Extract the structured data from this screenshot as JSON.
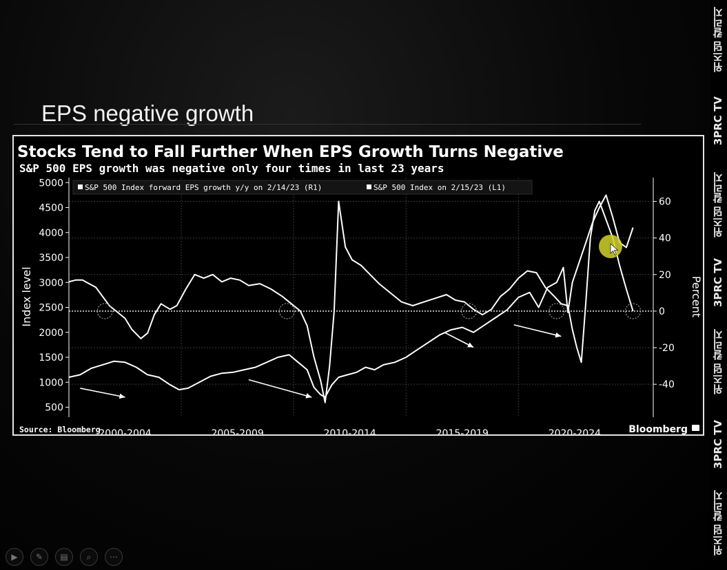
{
  "slide": {
    "title": "EPS negative growth"
  },
  "watermark": {
    "items": [
      "위즈덤 칼리지",
      "3PRC TV",
      "위즈덤 칼리지",
      "3PRC TV",
      "위즈덤 칼리지",
      "3PRC TV",
      "위즈덤 칼리지"
    ]
  },
  "controls": [
    {
      "name": "play-icon",
      "glyph": "▶"
    },
    {
      "name": "pen-icon",
      "glyph": "✎"
    },
    {
      "name": "slides-icon",
      "glyph": "▤"
    },
    {
      "name": "zoom-icon",
      "glyph": "⌕"
    },
    {
      "name": "more-icon",
      "glyph": "⋯"
    }
  ],
  "colors": {
    "background": "#000000",
    "line": "#ffffff",
    "cursor_highlight": "#d4d22a"
  },
  "chart_data": {
    "type": "line",
    "title": "Stocks Tend to Fall Further When EPS Growth Turns Negative",
    "subtitle": "S&P 500 EPS growth was negative only four times in last 23 years",
    "ylabel_left": "Index level",
    "ylabel_right": "Percent",
    "ylim_left": [
      300,
      5100
    ],
    "ylim_right": [
      -58,
      73
    ],
    "xlim": [
      1998.0,
      2024.0
    ],
    "yticks_left": [
      "5000",
      "4500",
      "4000",
      "3500",
      "3000",
      "2500",
      "2000",
      "1500",
      "1000",
      "500"
    ],
    "yticks_left_values": [
      5000,
      4500,
      4000,
      3500,
      3000,
      2500,
      2000,
      1500,
      1000,
      500
    ],
    "yticks_right": [
      "60",
      "40",
      "20",
      "0",
      "-20",
      "-40"
    ],
    "yticks_right_values": [
      60,
      40,
      20,
      0,
      -20,
      -40
    ],
    "xticks": [
      "2000-2004",
      "2005-2009",
      "2010-2014",
      "2015-2019",
      "2020-2024"
    ],
    "xticks_center": [
      2000.5,
      2005.5,
      2010.5,
      2015.5,
      2020.5
    ],
    "grid": true,
    "legend_position": "top-left",
    "source": "Source: Bloomberg",
    "brand": "Bloomberg",
    "series": [
      {
        "name": "S&P 500 Index forward EPS growth y/y on 2/14/23 (R1)",
        "axis": "right",
        "x": [
          1998.0,
          1998.3,
          1998.6,
          1998.9,
          1999.2,
          1999.5,
          1999.8,
          2000.1,
          2000.5,
          2000.8,
          2001.2,
          2001.5,
          2001.8,
          2002.1,
          2002.5,
          2002.8,
          2003.2,
          2003.6,
          2004.0,
          2004.4,
          2004.8,
          2005.2,
          2005.6,
          2006.0,
          2006.5,
          2007.0,
          2007.5,
          2007.9,
          2008.3,
          2008.6,
          2008.9,
          2009.2,
          2009.4,
          2009.6,
          2009.8,
          2010.0,
          2010.3,
          2010.6,
          2011.0,
          2011.4,
          2011.8,
          2012.3,
          2012.8,
          2013.3,
          2013.8,
          2014.3,
          2014.8,
          2015.2,
          2015.6,
          2016.0,
          2016.4,
          2016.8,
          2017.2,
          2017.6,
          2018.0,
          2018.4,
          2018.8,
          2019.2,
          2019.6,
          2019.9,
          2020.2,
          2020.4,
          2020.6,
          2020.8,
          2021.0,
          2021.2,
          2021.4,
          2021.6,
          2021.9,
          2022.2,
          2022.5,
          2022.8,
          2023.1
        ],
        "y": [
          16,
          17,
          17,
          15,
          13,
          8,
          3,
          0,
          -4,
          -10,
          -15,
          -12,
          -2,
          4,
          1,
          3,
          12,
          20,
          18,
          20,
          16,
          18,
          17,
          14,
          15,
          12,
          8,
          4,
          0,
          -8,
          -25,
          -38,
          -50,
          -30,
          0,
          60,
          35,
          28,
          25,
          20,
          15,
          10,
          5,
          3,
          5,
          7,
          9,
          6,
          5,
          1,
          -2,
          1,
          8,
          12,
          18,
          22,
          21,
          13,
          8,
          4,
          3,
          -10,
          -20,
          -28,
          5,
          40,
          55,
          60,
          50,
          40,
          25,
          12,
          0
        ]
      },
      {
        "name": "S&P 500 Index on 2/15/23 (L1)",
        "axis": "left",
        "x": [
          1998.0,
          1998.5,
          1999.0,
          1999.5,
          2000.0,
          2000.5,
          2001.0,
          2001.5,
          2002.0,
          2002.5,
          2002.9,
          2003.3,
          2003.8,
          2004.3,
          2004.8,
          2005.3,
          2005.8,
          2006.3,
          2006.8,
          2007.3,
          2007.8,
          2008.2,
          2008.6,
          2008.9,
          2009.2,
          2009.4,
          2009.7,
          2010.0,
          2010.4,
          2010.8,
          2011.2,
          2011.6,
          2012.0,
          2012.5,
          2013.0,
          2013.5,
          2014.0,
          2014.5,
          2015.0,
          2015.5,
          2016.0,
          2016.5,
          2017.0,
          2017.5,
          2018.0,
          2018.5,
          2018.9,
          2019.3,
          2019.7,
          2020.0,
          2020.2,
          2020.4,
          2020.7,
          2021.0,
          2021.3,
          2021.6,
          2021.9,
          2022.2,
          2022.5,
          2022.8,
          2023.1
        ],
        "y": [
          1100,
          1150,
          1280,
          1350,
          1420,
          1400,
          1300,
          1150,
          1100,
          950,
          850,
          880,
          1000,
          1120,
          1180,
          1200,
          1250,
          1300,
          1400,
          1500,
          1550,
          1400,
          1250,
          900,
          750,
          700,
          950,
          1100,
          1150,
          1200,
          1300,
          1250,
          1350,
          1400,
          1500,
          1650,
          1800,
          1950,
          2050,
          2100,
          2000,
          2150,
          2300,
          2450,
          2700,
          2800,
          2500,
          2900,
          3000,
          3300,
          2400,
          3000,
          3400,
          3800,
          4200,
          4500,
          4750,
          4300,
          3800,
          3700,
          4100
        ]
      }
    ]
  }
}
